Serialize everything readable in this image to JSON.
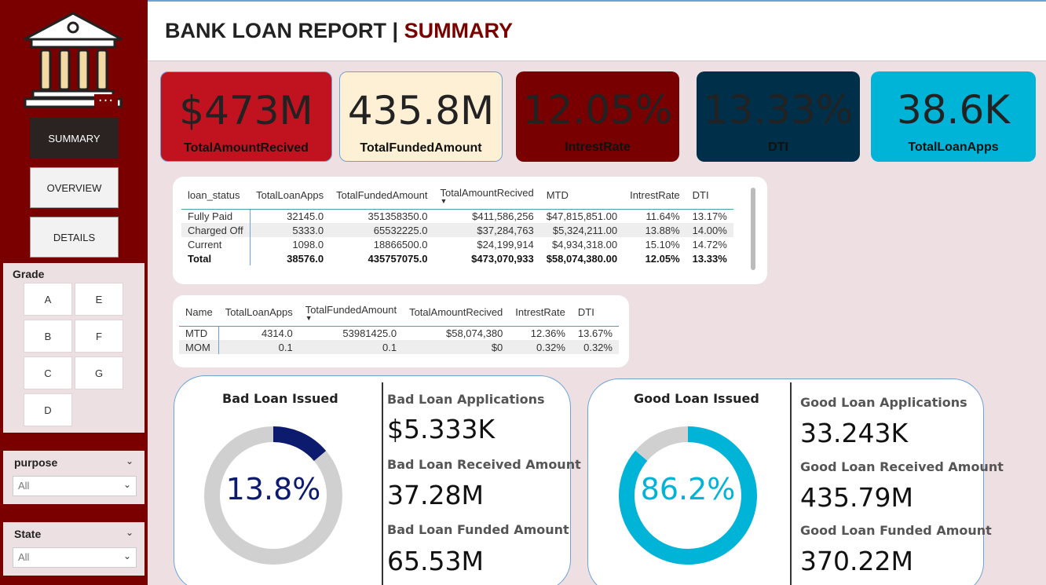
{
  "header": {
    "title": "BANK LOAN REPORT | ",
    "title_accent": "SUMMARY"
  },
  "sidebar": {
    "more_label": "···",
    "nav": [
      {
        "label": "SUMMARY"
      },
      {
        "label": "OVERVIEW"
      },
      {
        "label": "DETAILS"
      }
    ],
    "grade": {
      "title": "Grade",
      "options": [
        "A",
        "E",
        "B",
        "F",
        "C",
        "G",
        "D"
      ]
    },
    "purpose": {
      "title": "purpose",
      "value": "All"
    },
    "state": {
      "title": "State",
      "value": "All"
    }
  },
  "kpis": [
    {
      "value": "$473M",
      "label": "TotalAmountRecived",
      "bg": "#c0121f"
    },
    {
      "value": "435.8M",
      "label": "TotalFundedAmount",
      "bg": "#fdf0d5"
    },
    {
      "value": "12.05%",
      "label": "IntrestRate",
      "bg": "#780000"
    },
    {
      "value": "13.33%",
      "label": "DTI",
      "bg": "#003049"
    },
    {
      "value": "38.6K",
      "label": "TotalLoanApps",
      "bg": "#00b4d8"
    }
  ],
  "status_table": {
    "columns": [
      "loan_status",
      "TotalLoanApps",
      "TotalFundedAmount",
      "TotalAmountRecived",
      "MTD",
      "IntrestRate",
      "DTI"
    ],
    "rows": [
      [
        "Fully Paid",
        "32145.0",
        "351358350.0",
        "$411,586,256",
        "$47,815,851.00",
        "11.64%",
        "13.17%"
      ],
      [
        "Charged Off",
        "5333.0",
        "65532225.0",
        "$37,284,763",
        "$5,324,211.00",
        "13.88%",
        "14.00%"
      ],
      [
        "Current",
        "1098.0",
        "18866500.0",
        "$24,199,914",
        "$4,934,318.00",
        "15.10%",
        "14.72%"
      ]
    ],
    "total": [
      "Total",
      "38576.0",
      "435757075.0",
      "$473,070,933",
      "$58,074,380.00",
      "12.05%",
      "13.33%"
    ]
  },
  "mtd_table": {
    "columns": [
      "Name",
      "TotalLoanApps",
      "TotalFundedAmount",
      "TotalAmountRecived",
      "IntrestRate",
      "DTI"
    ],
    "rows": [
      [
        "MTD",
        "4314.0",
        "53981425.0",
        "$58,074,380",
        "12.36%",
        "13.67%"
      ],
      [
        "MOM",
        "0.1",
        "0.1",
        "$0",
        "0.32%",
        "0.32%"
      ]
    ]
  },
  "bad_loan": {
    "title": "Bad Loan Issued",
    "percent_label": "13.8%",
    "percent": 13.8,
    "color": "#0d1b6e",
    "track_color": "#d0d0d0",
    "stats": [
      {
        "label": "Bad Loan Applications",
        "value": "$5.333K"
      },
      {
        "label": "Bad Loan Received Amount",
        "value": "37.28M"
      },
      {
        "label": "Bad Loan Funded Amount",
        "value": "65.53M"
      }
    ]
  },
  "good_loan": {
    "title": "Good Loan Issued",
    "percent_label": "86.2%",
    "percent": 86.2,
    "color": "#00b4d8",
    "track_color": "#d0d0d0",
    "stats": [
      {
        "label": "Good Loan Applications",
        "value": "33.243K"
      },
      {
        "label": "Good Loan Received Amount",
        "value": "435.79M"
      },
      {
        "label": "Good Loan Funded Amount",
        "value": "370.22M"
      }
    ]
  }
}
